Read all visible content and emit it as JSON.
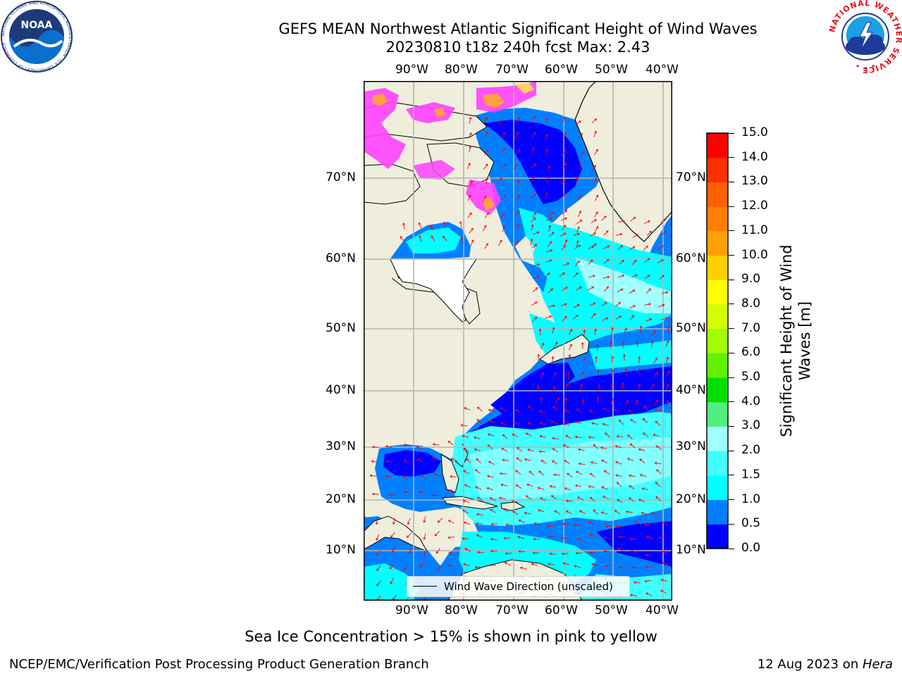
{
  "title": {
    "line1": "GEFS MEAN Northwest Atlantic Significant Height of Wind Waves",
    "line2": "20230810 t18z 240h fcst   Max: 2.43"
  },
  "map": {
    "lon_labels": [
      "90°W",
      "80°W",
      "70°W",
      "60°W",
      "50°W",
      "40°W"
    ],
    "lat_labels": [
      "70°N",
      "60°N",
      "50°N",
      "40°N",
      "30°N",
      "20°N",
      "10°N"
    ],
    "legend_label": "Wind Wave Direction (unscaled)",
    "land_color": "#efeedd",
    "grid_color": "#b4b4b4",
    "arrow_color": "#ff0000"
  },
  "colorbar": {
    "label": "Significant Height of Wind Waves [m]",
    "label_line1": "Significant Height of Wind",
    "label_line2": "Waves [m]",
    "ticks": [
      "0.0",
      "0.5",
      "1.0",
      "1.5",
      "2.0",
      "3.0",
      "4.0",
      "5.0",
      "6.0",
      "7.0",
      "8.0",
      "9.0",
      "10.0",
      "11.0",
      "12.0",
      "13.0",
      "14.0",
      "15.0"
    ],
    "colors": [
      "#0000ff",
      "#0080ff",
      "#00ffff",
      "#40ffff",
      "#a0ffff",
      "#50f080",
      "#00e000",
      "#60f000",
      "#a0ff00",
      "#d0ff00",
      "#ffff00",
      "#ffd000",
      "#ffa000",
      "#ff8000",
      "#ff6000",
      "#ff3000",
      "#ff0000"
    ]
  },
  "caption": "Sea Ice Concentration > 15% is shown in pink to yellow",
  "footer": {
    "left": "NCEP/EMC/Verification Post Processing Product Generation Branch",
    "date": "12 Aug 2023 on ",
    "host": "Hera"
  },
  "logos": {
    "noaa_text": "NOAA",
    "noaa_ring": "NATIONAL OCEANIC AND ATMOSPHERIC ADMINISTRATION · U.S. DEPARTMENT OF COMMERCE",
    "nws_ring": "NATIONAL WEATHER SERVICE"
  }
}
